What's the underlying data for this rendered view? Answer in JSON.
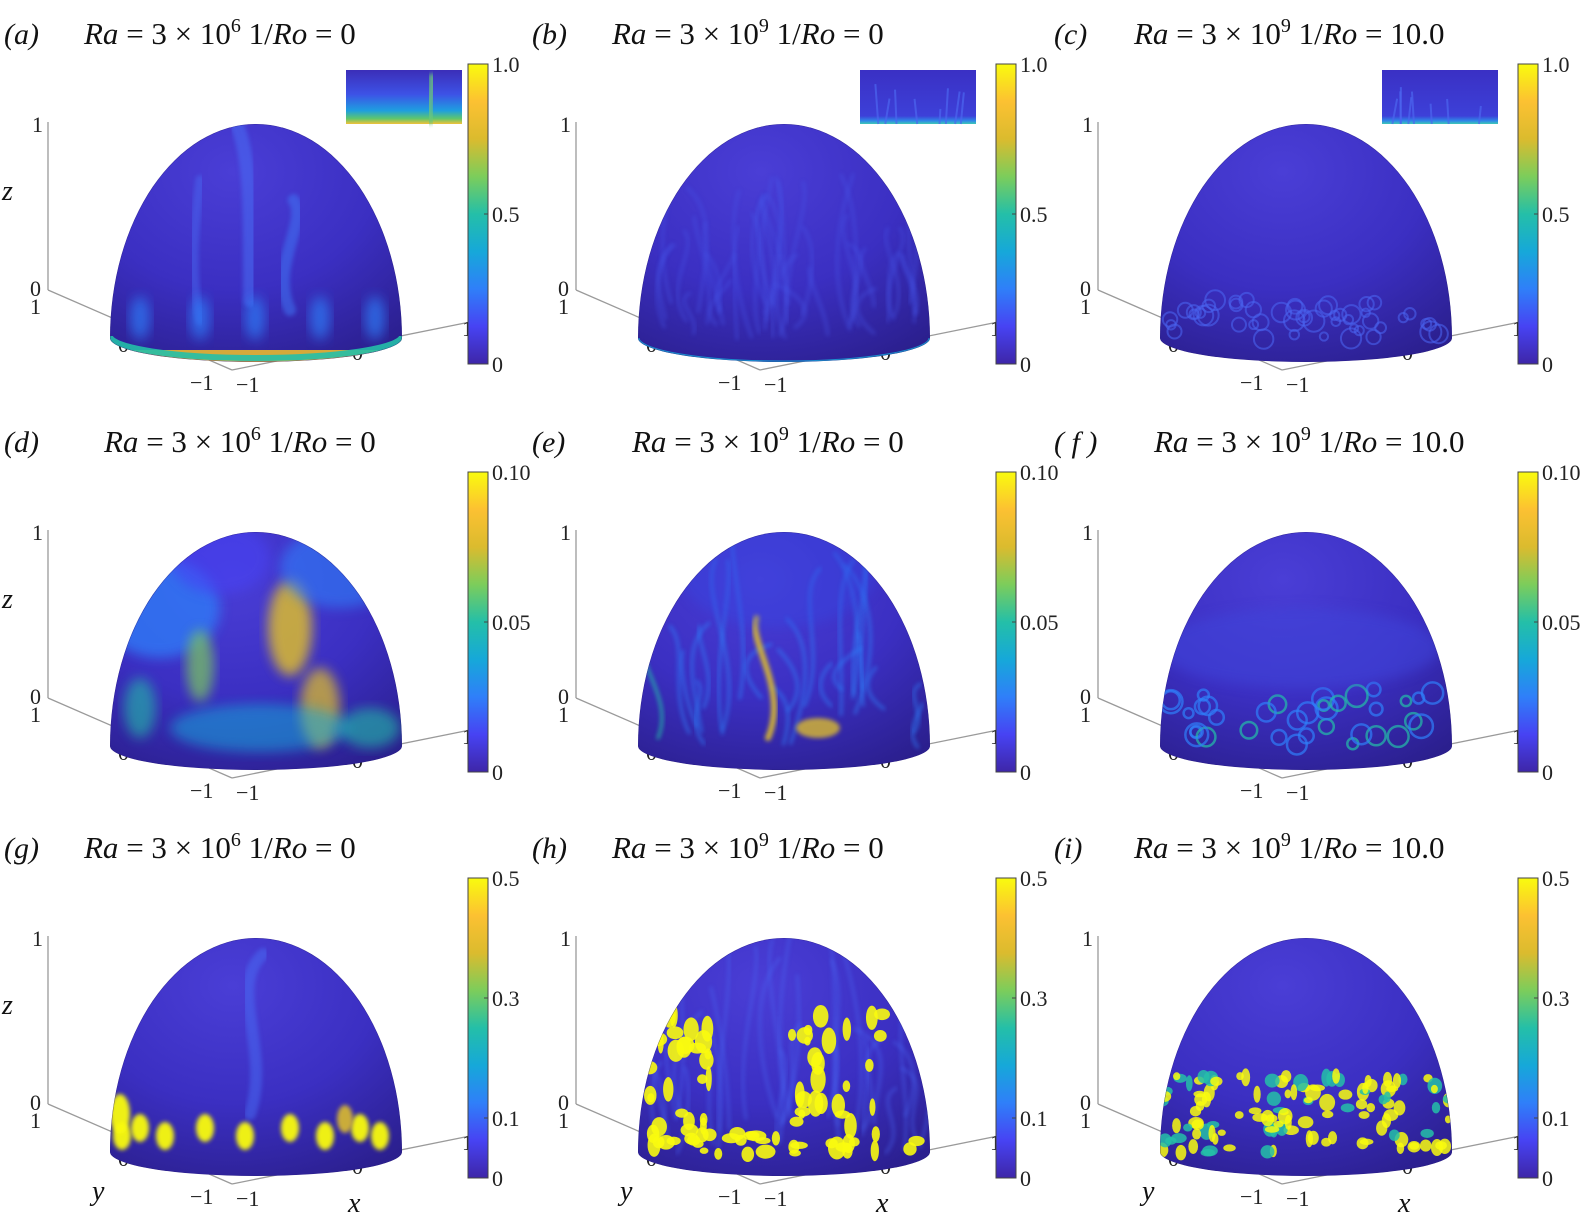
{
  "figure": {
    "panels": [
      {
        "id": "a",
        "label": "(a)",
        "ra": "3",
        "ra_exp": "6",
        "ro": "0",
        "cbar_ticks": [
          "0",
          "0.5",
          "1.0"
        ],
        "inset": true,
        "field_style": "smooth-temperature"
      },
      {
        "id": "b",
        "label": "(b)",
        "ra": "3",
        "ra_exp": "9",
        "ro": "0",
        "cbar_ticks": [
          "0",
          "0.5",
          "1.0"
        ],
        "inset": true,
        "field_style": "turbulent-temperature"
      },
      {
        "id": "c",
        "label": "(c)",
        "ra": "3",
        "ra_exp": "9",
        "ro": "10.0",
        "cbar_ticks": [
          "0",
          "0.5",
          "1.0"
        ],
        "inset": true,
        "field_style": "rotating-temperature"
      },
      {
        "id": "d",
        "label": "(d)",
        "ra": "3",
        "ra_exp": "6",
        "ro": "0",
        "cbar_ticks": [
          "0",
          "0.05",
          "0.10"
        ],
        "inset": false,
        "field_style": "smooth-velocity"
      },
      {
        "id": "e",
        "label": "(e)",
        "ra": "3",
        "ra_exp": "9",
        "ro": "0",
        "cbar_ticks": [
          "0",
          "0.05",
          "0.10"
        ],
        "inset": false,
        "field_style": "turbulent-velocity"
      },
      {
        "id": "f",
        "label": "( f )",
        "ra": "3",
        "ra_exp": "9",
        "ro": "10.0",
        "cbar_ticks": [
          "0",
          "0.05",
          "0.10"
        ],
        "inset": false,
        "field_style": "rotating-velocity"
      },
      {
        "id": "g",
        "label": "(g)",
        "ra": "3",
        "ra_exp": "6",
        "ro": "0",
        "cbar_ticks": [
          "0",
          "0.1",
          "0.3",
          "0.5"
        ],
        "inset": false,
        "field_style": "smooth-dissipation"
      },
      {
        "id": "h",
        "label": "(h)",
        "ra": "3",
        "ra_exp": "9",
        "ro": "0",
        "cbar_ticks": [
          "0",
          "0.1",
          "0.3",
          "0.5"
        ],
        "inset": false,
        "field_style": "turbulent-dissipation"
      },
      {
        "id": "i",
        "label": "(i)",
        "ra": "3",
        "ra_exp": "9",
        "ro": "10.0",
        "cbar_ticks": [
          "0",
          "0.1",
          "0.3",
          "0.5"
        ],
        "inset": false,
        "field_style": "rotating-dissipation"
      }
    ],
    "title_text": {
      "ra_symbol": "Ra",
      "equals": " = ",
      "times": " × ",
      "ten": "10",
      "ro_prefix": " 1/",
      "ro_symbol": "Ro"
    },
    "axes": {
      "z_label": "z",
      "y_label": "y",
      "x_label": "x",
      "z_ticks": [
        "0",
        "1"
      ],
      "y_ticks": [
        "1",
        "0",
        "−1"
      ],
      "x_ticks": [
        "−1",
        "0",
        "1"
      ]
    },
    "colormap": {
      "name": "parula",
      "stops": [
        "#3e26a8",
        "#4743f3",
        "#2f7ff9",
        "#16a8d9",
        "#24bfa8",
        "#7ccd5b",
        "#dbbb2e",
        "#fcc132",
        "#f9fb0e"
      ],
      "background_color": "#3a2fbf"
    }
  }
}
